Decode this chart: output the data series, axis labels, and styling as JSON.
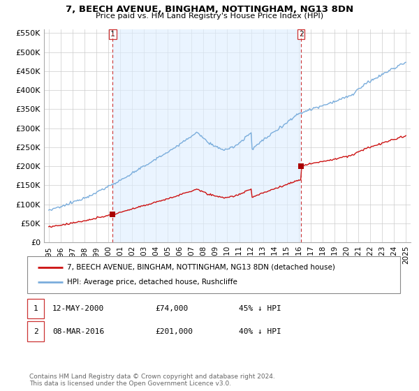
{
  "title": "7, BEECH AVENUE, BINGHAM, NOTTINGHAM, NG13 8DN",
  "subtitle": "Price paid vs. HM Land Registry's House Price Index (HPI)",
  "hpi_color": "#7aaddc",
  "hpi_fill_color": "#ddeeff",
  "price_color": "#cc1111",
  "marker_color": "#aa0000",
  "vline_color": "#cc3333",
  "ylim": [
    0,
    560000
  ],
  "yticks": [
    0,
    50000,
    100000,
    150000,
    200000,
    250000,
    300000,
    350000,
    400000,
    450000,
    500000,
    550000
  ],
  "ytick_labels": [
    "£0",
    "£50K",
    "£100K",
    "£150K",
    "£200K",
    "£250K",
    "£300K",
    "£350K",
    "£400K",
    "£450K",
    "£500K",
    "£550K"
  ],
  "transaction1": {
    "date_num": 2000.36,
    "price": 74000,
    "label": "1",
    "date_str": "12-MAY-2000",
    "pct": "45% ↓ HPI"
  },
  "transaction2": {
    "date_num": 2016.19,
    "price": 201000,
    "label": "2",
    "date_str": "08-MAR-2016",
    "pct": "40% ↓ HPI"
  },
  "legend_property": "7, BEECH AVENUE, BINGHAM, NOTTINGHAM, NG13 8DN (detached house)",
  "legend_hpi": "HPI: Average price, detached house, Rushcliffe",
  "footnote": "Contains HM Land Registry data © Crown copyright and database right 2024.\nThis data is licensed under the Open Government Licence v3.0.",
  "xtick_years": [
    1995,
    1996,
    1997,
    1998,
    1999,
    2000,
    2001,
    2002,
    2003,
    2004,
    2005,
    2006,
    2007,
    2008,
    2009,
    2010,
    2011,
    2012,
    2013,
    2014,
    2015,
    2016,
    2017,
    2018,
    2019,
    2020,
    2021,
    2022,
    2023,
    2024,
    2025
  ],
  "xlim": [
    1994.6,
    2025.4
  ]
}
